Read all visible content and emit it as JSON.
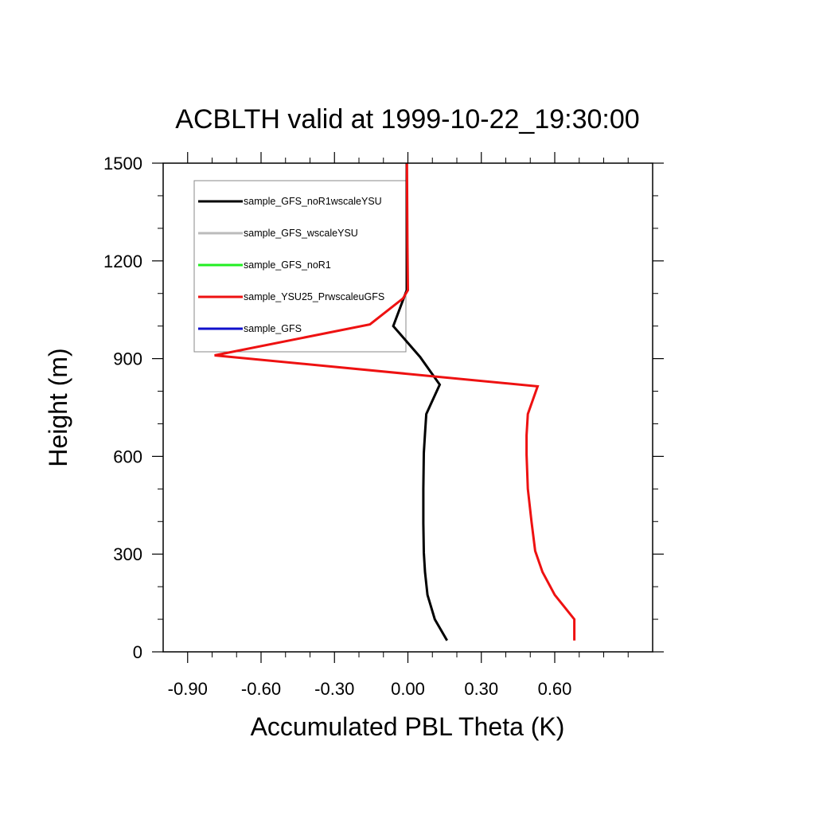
{
  "chart_data": {
    "type": "line",
    "title": "ACBLTH valid at 1999-10-22_19:30:00",
    "xlabel": "Accumulated PBL Theta (K)",
    "ylabel": "Height (m)",
    "xlim": [
      -1.0,
      1.0
    ],
    "ylim": [
      0,
      1500
    ],
    "xticks": [
      -0.9,
      -0.6,
      -0.3,
      0.0,
      0.3,
      0.6
    ],
    "xtick_labels": [
      "-0.90",
      "-0.60",
      "-0.30",
      "0.00",
      "0.30",
      "0.60"
    ],
    "yticks": [
      0,
      300,
      600,
      900,
      1200,
      1500
    ],
    "ytick_labels": [
      "0",
      "300",
      "600",
      "900",
      "1200",
      "1500"
    ],
    "grid": false,
    "legend_position": "top-left",
    "series": [
      {
        "name": "sample_GFS_noR1wscaleYSU",
        "color": "#000000",
        "x": [
          0.16,
          0.11,
          0.08,
          0.07,
          0.065,
          0.063,
          0.063,
          0.065,
          0.07,
          0.075,
          0.13,
          0.05,
          -0.06,
          -0.005,
          -0.005,
          -0.005
        ],
        "y": [
          35,
          100,
          175,
          245,
          305,
          395,
          500,
          610,
          670,
          730,
          820,
          905,
          1000,
          1110,
          1250,
          1500
        ]
      },
      {
        "name": "sample_GFS_wscaleYSU",
        "color": "#bbbbbb",
        "x": [],
        "y": []
      },
      {
        "name": "sample_GFS_noR1",
        "color": "#22ee22",
        "x": [],
        "y": []
      },
      {
        "name": "sample_YSU25_PrwscaleuGFS",
        "color": "#ee1111",
        "x": [
          0.68,
          0.68,
          0.6,
          0.55,
          0.52,
          0.505,
          0.49,
          0.485,
          0.485,
          0.49,
          0.53,
          -0.79,
          -0.155,
          -0.02,
          0.0,
          -0.002,
          -0.004
        ],
        "y": [
          35,
          100,
          175,
          245,
          310,
          400,
          500,
          605,
          665,
          730,
          815,
          910,
          1005,
          1085,
          1110,
          1250,
          1500
        ]
      },
      {
        "name": "sample_GFS",
        "color": "#1111cc",
        "x": [],
        "y": []
      }
    ]
  }
}
